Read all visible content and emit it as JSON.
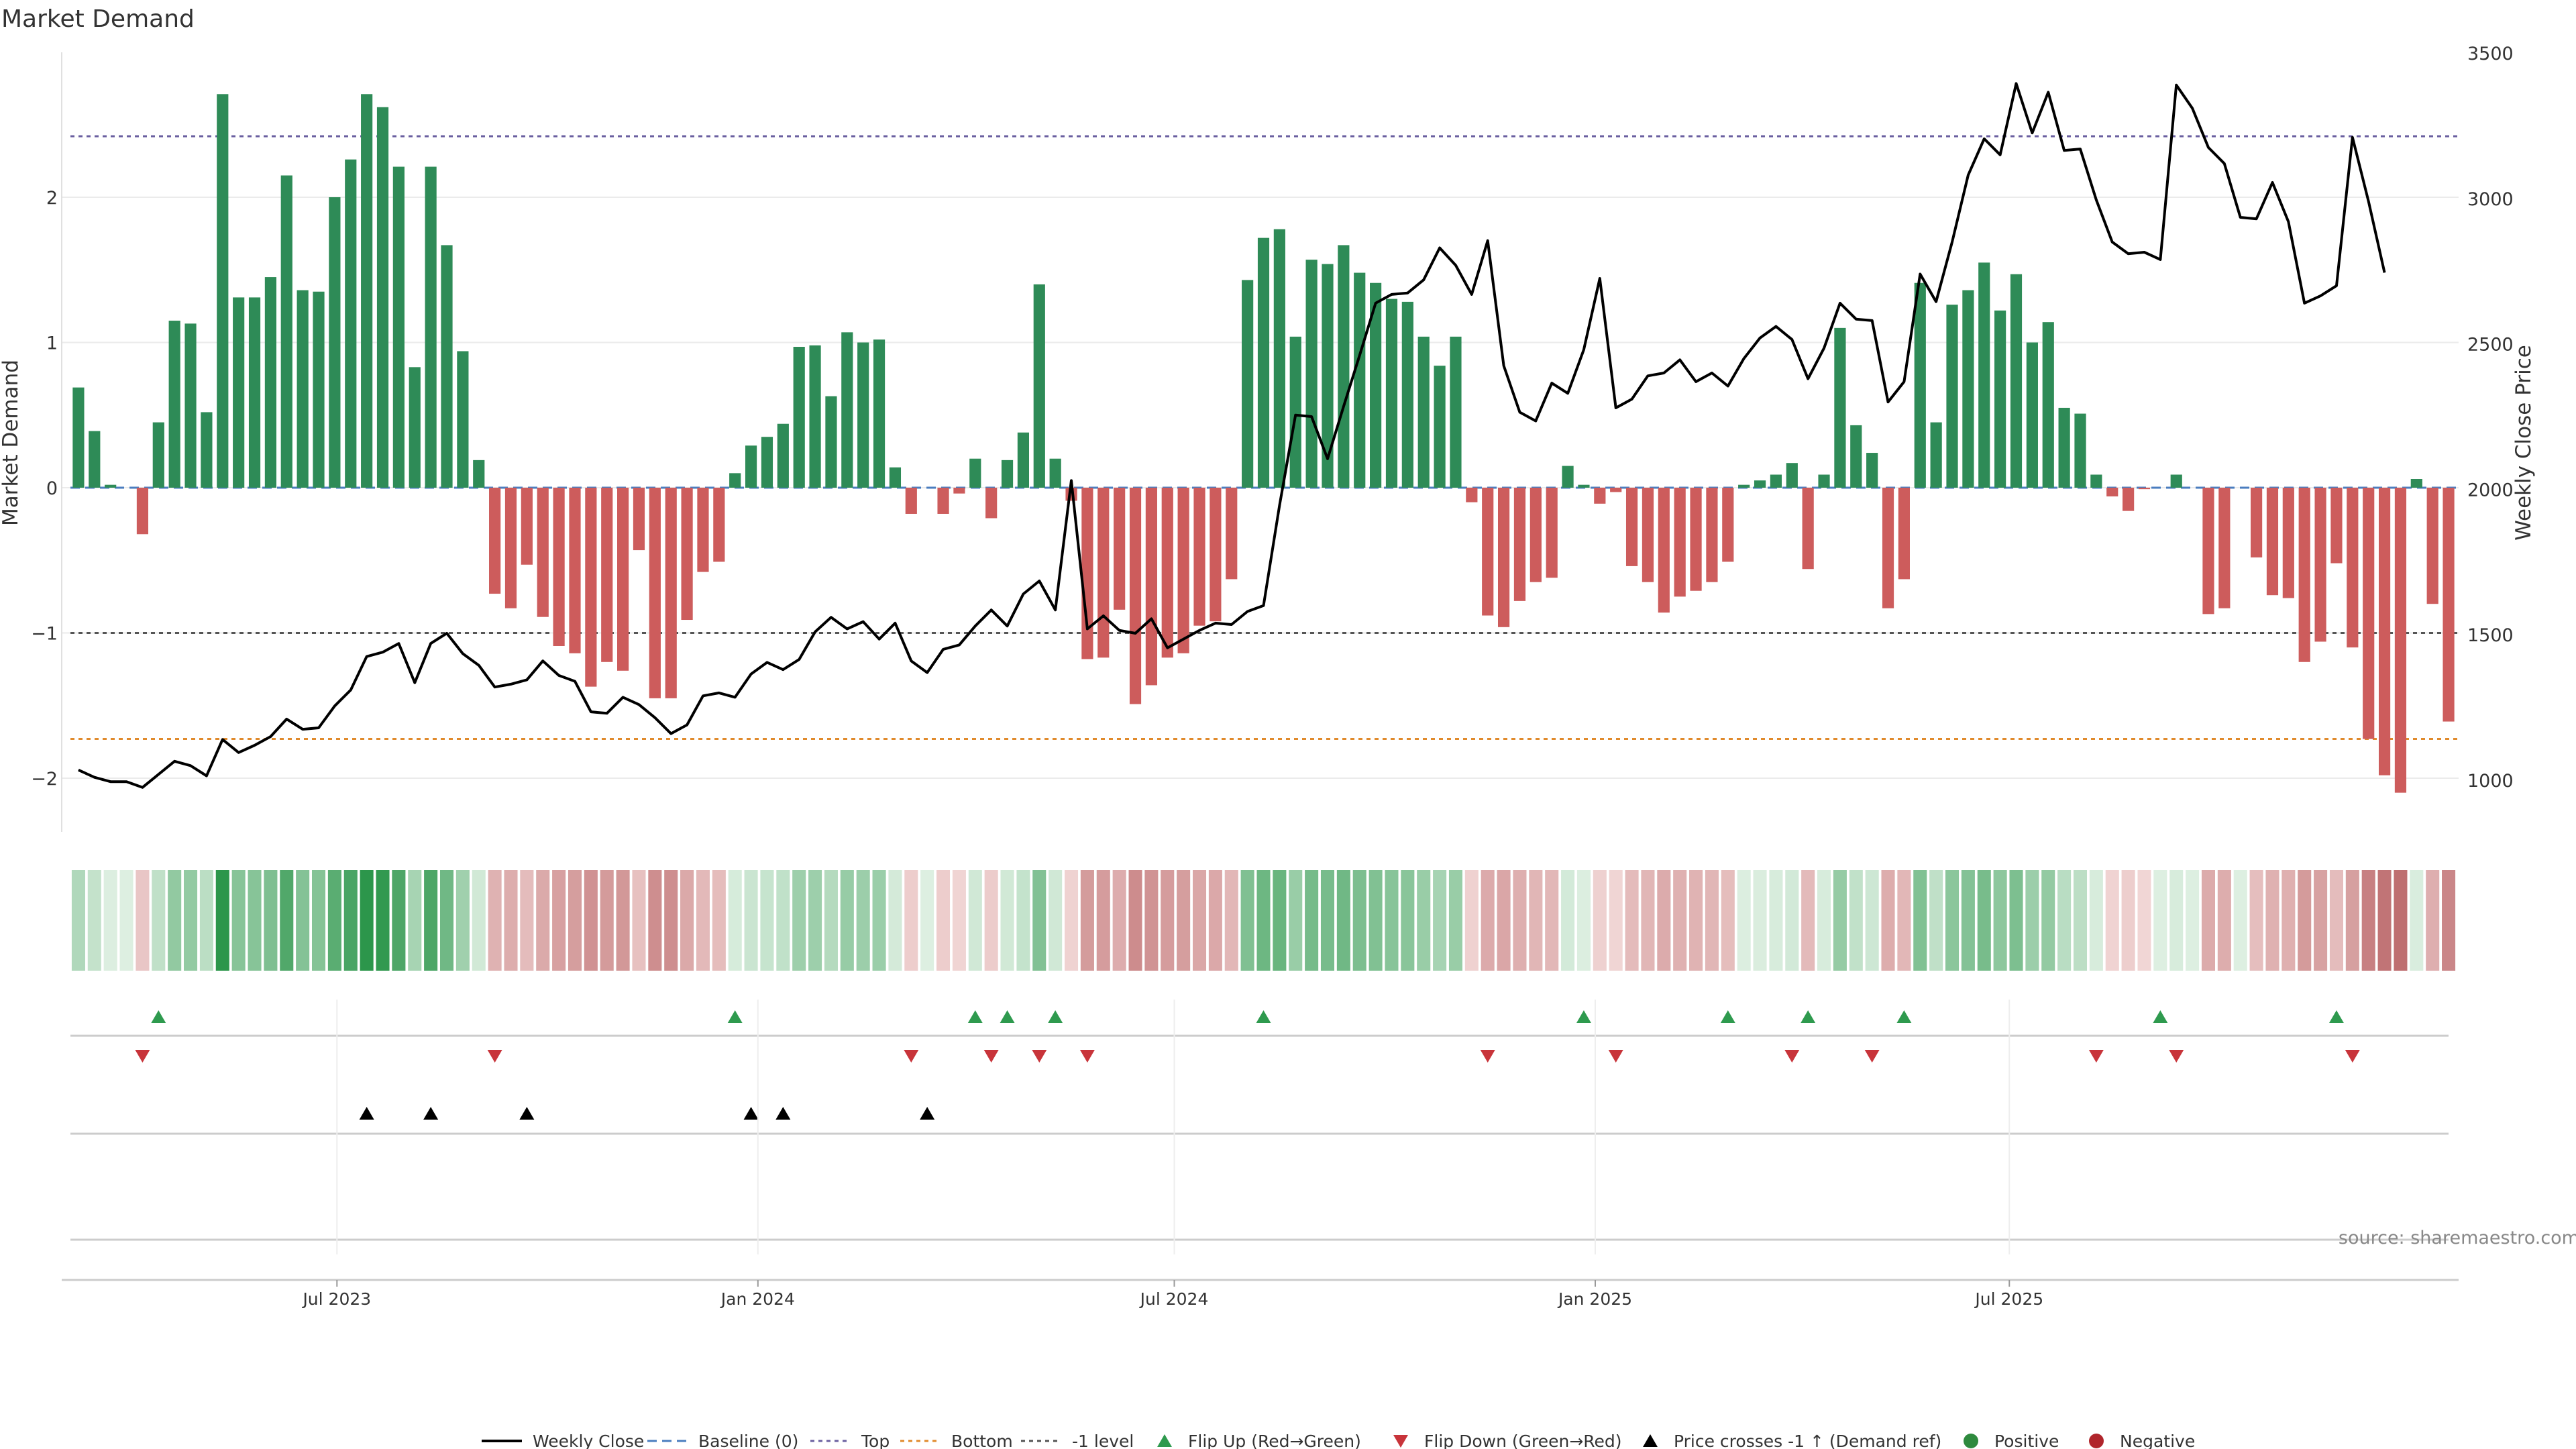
{
  "chart_data": {
    "type": "bar",
    "title": "Market Demand",
    "ylabel": "Market Demand",
    "y2label": "Weekly Close Price",
    "source": "source: sharemaestro.com",
    "ylim": [
      -2.4,
      3.0
    ],
    "y2lim": [
      850,
      3500
    ],
    "y_ticks": [
      -2,
      -1,
      0,
      1,
      2
    ],
    "y_tick_labels": [
      "−2",
      "−1",
      "0",
      "1",
      "2"
    ],
    "y2_ticks": [
      1000,
      1500,
      2000,
      2500,
      3000,
      3500
    ],
    "y2_tick_labels": [
      "1000",
      "1500",
      "2000",
      "2500",
      "3000",
      "3500"
    ],
    "x_start": "2023-03-10",
    "x_ticks": [
      {
        "date": "2023-07-01",
        "label": "Jul 2023"
      },
      {
        "date": "2024-01-01",
        "label": "Jan 2024"
      },
      {
        "date": "2024-07-01",
        "label": "Jul 2024"
      },
      {
        "date": "2025-01-01",
        "label": "Jan 2025"
      },
      {
        "date": "2025-07-01",
        "label": "Jul 2025"
      }
    ],
    "levels": {
      "top": 2.42,
      "bottom": -1.73,
      "minus_one": -1,
      "baseline": 0
    },
    "demand": [
      0.69,
      0.39,
      0.02,
      0.0,
      -0.32,
      0.45,
      1.15,
      1.13,
      0.52,
      2.71,
      1.31,
      1.31,
      1.45,
      2.15,
      1.36,
      1.35,
      2.0,
      2.26,
      2.71,
      2.62,
      2.21,
      0.83,
      2.21,
      1.67,
      0.94,
      0.19,
      -0.73,
      -0.83,
      -0.53,
      -0.89,
      -1.09,
      -1.14,
      -1.37,
      -1.2,
      -1.26,
      -0.43,
      -1.45,
      -1.45,
      -0.91,
      -0.58,
      -0.51,
      0.1,
      0.29,
      0.35,
      0.44,
      0.97,
      0.98,
      0.63,
      1.07,
      1.0,
      1.02,
      0.14,
      -0.18,
      0.0,
      -0.18,
      -0.04,
      0.2,
      -0.21,
      0.19,
      0.38,
      1.4,
      0.2,
      -0.09,
      -1.18,
      -1.17,
      -0.84,
      -1.49,
      -1.36,
      -1.17,
      -1.14,
      -0.95,
      -0.92,
      -0.63,
      1.43,
      1.72,
      1.78,
      1.04,
      1.57,
      1.54,
      1.67,
      1.48,
      1.41,
      1.3,
      1.28,
      1.04,
      0.84,
      1.04,
      -0.1,
      -0.88,
      -0.96,
      -0.78,
      -0.65,
      -0.62,
      0.15,
      0.02,
      -0.11,
      -0.03,
      -0.54,
      -0.65,
      -0.86,
      -0.75,
      -0.71,
      -0.65,
      -0.51,
      0.02,
      0.05,
      0.09,
      0.17,
      -0.56,
      0.09,
      1.1,
      0.43,
      0.24,
      -0.83,
      -0.63,
      1.41,
      0.45,
      1.26,
      1.36,
      1.55,
      1.22,
      1.47,
      1.0,
      1.14,
      0.55,
      0.51,
      0.09,
      -0.06,
      -0.16,
      -0.01,
      0.0,
      0.09,
      0.0,
      -0.87,
      -0.83,
      0.0,
      -0.48,
      -0.74,
      -0.76,
      -1.2,
      -1.06,
      -0.52,
      -1.1,
      -1.73,
      -1.98,
      -2.1,
      0.06,
      -0.8,
      -1.61
    ],
    "weekly_close": [
      1035,
      1010,
      995,
      995,
      975,
      1020,
      1065,
      1050,
      1015,
      1140,
      1095,
      1120,
      1150,
      1210,
      1175,
      1180,
      1255,
      1310,
      1425,
      1440,
      1470,
      1335,
      1470,
      1505,
      1435,
      1395,
      1320,
      1330,
      1345,
      1410,
      1360,
      1340,
      1235,
      1230,
      1285,
      1260,
      1215,
      1160,
      1190,
      1290,
      1300,
      1285,
      1365,
      1405,
      1380,
      1415,
      1510,
      1560,
      1520,
      1545,
      1485,
      1540,
      1410,
      1370,
      1450,
      1465,
      1530,
      1585,
      1530,
      1640,
      1685,
      1585,
      2030,
      1520,
      1565,
      1515,
      1505,
      1555,
      1455,
      1485,
      1515,
      1540,
      1535,
      1580,
      1600,
      1945,
      2255,
      2250,
      2105,
      2285,
      2460,
      2640,
      2670,
      2675,
      2720,
      2830,
      2770,
      2670,
      2855,
      2425,
      2265,
      2235,
      2365,
      2330,
      2480,
      2725,
      2280,
      2310,
      2390,
      2400,
      2445,
      2370,
      2400,
      2355,
      2450,
      2520,
      2560,
      2515,
      2380,
      2485,
      2640,
      2585,
      2580,
      2300,
      2370,
      2740,
      2645,
      2850,
      3080,
      3205,
      3150,
      3395,
      3225,
      3365,
      3165,
      3170,
      2995,
      2850,
      2810,
      2815,
      2790,
      3390,
      3310,
      3175,
      3120,
      2935,
      2930,
      3055,
      2920,
      2640,
      2665,
      2700,
      3210,
      2990,
      2745
    ],
    "flip_up_weeks": [
      5,
      41,
      56,
      58,
      61,
      74,
      94,
      103,
      108,
      114,
      130,
      141
    ],
    "flip_down_weeks": [
      4,
      26,
      52,
      57,
      60,
      63,
      88,
      96,
      107,
      112,
      126,
      131,
      142
    ],
    "price_cross_weeks": [
      18,
      22,
      28,
      42,
      44,
      53
    ],
    "legend": [
      {
        "label": "Weekly Close",
        "kind": "line",
        "color": "#000000"
      },
      {
        "label": "Baseline (0)",
        "kind": "dashed",
        "color": "#4a7dbf"
      },
      {
        "label": "Top",
        "kind": "dotted",
        "color": "#6a5fa0"
      },
      {
        "label": "Bottom",
        "kind": "dotted",
        "color": "#e08a2c"
      },
      {
        "label": "-1 level",
        "kind": "dotted",
        "color": "#555555"
      },
      {
        "label": "Flip Up (Red→Green)",
        "kind": "tri-up",
        "color": "#2e9a4e"
      },
      {
        "label": "Flip Down (Green→Red)",
        "kind": "tri-down",
        "color": "#c8343a"
      },
      {
        "label": "Price crosses -1 ↑ (Demand ref)",
        "kind": "tri-up",
        "color": "#000000"
      },
      {
        "label": "Positive",
        "kind": "dot",
        "color": "#2e8a3e"
      },
      {
        "label": "Negative",
        "kind": "dot",
        "color": "#b0252b"
      }
    ],
    "colors": {
      "positive": "#2e8b57",
      "negative": "#cd5c5c",
      "price": "#000000",
      "grid": "#ebebeb"
    }
  }
}
